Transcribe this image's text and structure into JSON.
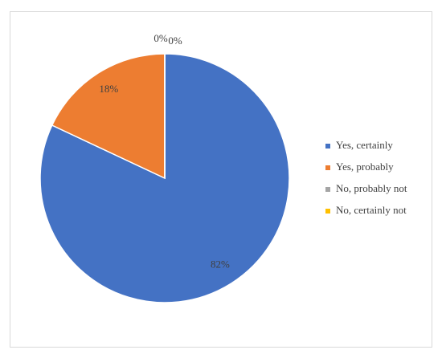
{
  "chart_data": {
    "type": "pie",
    "categories": [
      "Yes, certainly",
      "Yes, probably",
      "No, probably not",
      "No, certainly not"
    ],
    "values": [
      82,
      18,
      0,
      0
    ],
    "value_labels": [
      "82%",
      "18%",
      "0%",
      "0%"
    ],
    "colors": [
      "#4472c4",
      "#ed7d31",
      "#a5a5a5",
      "#ffc000"
    ],
    "legend": "right"
  }
}
